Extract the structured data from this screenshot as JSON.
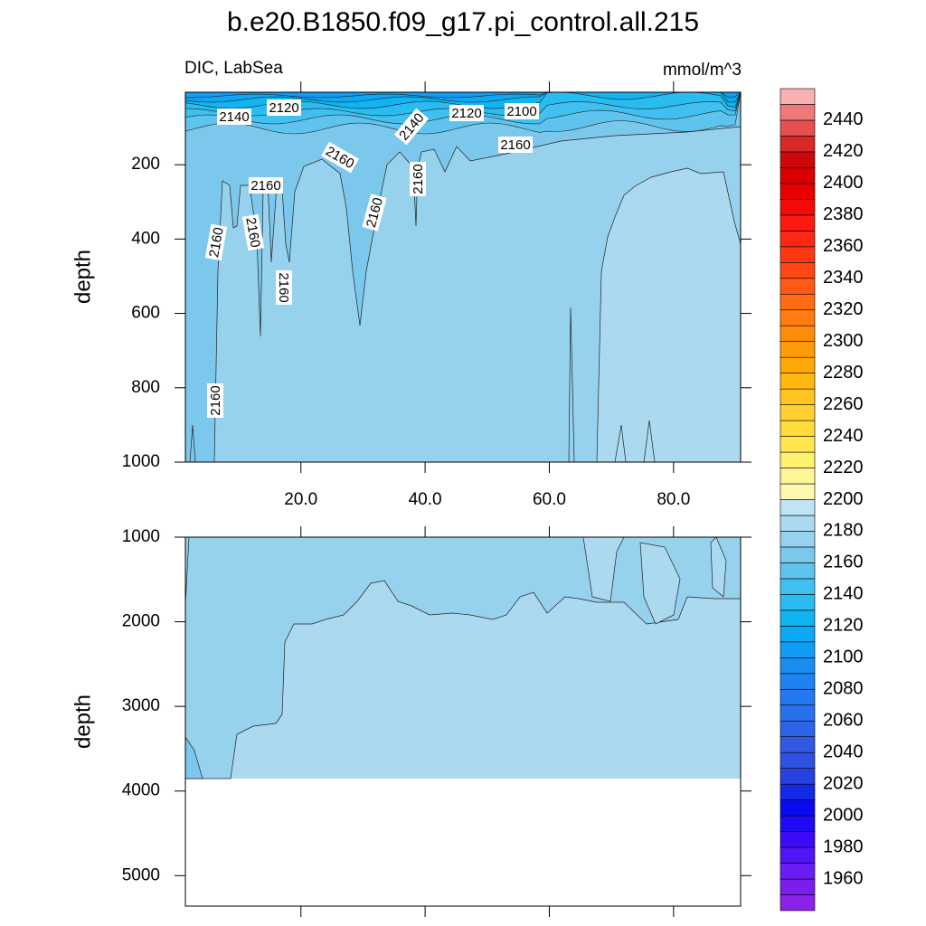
{
  "chart_data": [
    {
      "type": "contour",
      "title": "b.e20.B1850.f09_g17.pi_control.all.215",
      "subtitle_left": "DIC, LabSea",
      "subtitle_right": "mmol/m^3",
      "ylabel": "depth",
      "xlim": [
        1.4,
        90.8
      ],
      "xticks": [
        {
          "value": 20,
          "label": "20.0"
        },
        {
          "value": 40,
          "label": "40.0"
        },
        {
          "value": 60,
          "label": "60.0"
        },
        {
          "value": 80,
          "label": "80.0"
        }
      ],
      "ylim": [
        5,
        1000
      ],
      "yticks": [
        200,
        400,
        600,
        800,
        1000
      ],
      "contour_labels": [
        2140,
        2120,
        2140,
        2120,
        2100,
        2160,
        2160,
        2160,
        2160,
        2160,
        2160,
        2160,
        2160,
        2160
      ],
      "colorbar": {
        "lim": [
          1940,
          2460
        ],
        "ticks": [
          1960,
          1980,
          2000,
          2020,
          2040,
          2060,
          2080,
          2100,
          2120,
          2140,
          2160,
          2180,
          2200,
          2220,
          2240,
          2260,
          2280,
          2300,
          2320,
          2340,
          2360,
          2380,
          2400,
          2420,
          2440
        ],
        "colors": [
          "#8b22e8",
          "#7a1ef0",
          "#6a1ef5",
          "#5014f5",
          "#3c0af5",
          "#1e0af5",
          "#0a0af0",
          "#1428e6",
          "#2840e0",
          "#3050e0",
          "#3258e4",
          "#2d64e8",
          "#2870ec",
          "#2478f0",
          "#1e82f0",
          "#1a8cf2",
          "#109cf5",
          "#0aa8f5",
          "#10b4f0",
          "#28bcf0",
          "#40c0f0",
          "#5ec4ee",
          "#7cc8ec",
          "#96d2ee",
          "#aad9f0",
          "#c0e4f4",
          "#fff8b0",
          "#fff498",
          "#fff070",
          "#ffe650",
          "#ffdc3c",
          "#ffd030",
          "#ffc420",
          "#ffb810",
          "#ffa808",
          "#ff9a08",
          "#ff8c08",
          "#ff7c10",
          "#ff6c14",
          "#ff5a14",
          "#ff4814",
          "#ff3814",
          "#ff2814",
          "#ff1a10",
          "#f50a0a",
          "#e60000",
          "#d80000",
          "#cc0808",
          "#d82828",
          "#e85050",
          "#f07878",
          "#f8b0b0"
        ]
      }
    },
    {
      "type": "contour",
      "ylabel": "depth",
      "xlim": [
        1.4,
        90.8
      ],
      "xticks": [
        20,
        40,
        60,
        80
      ],
      "ylim": [
        1000,
        5360
      ],
      "yticks": [
        1000,
        2000,
        3000,
        4000,
        5000
      ]
    }
  ]
}
